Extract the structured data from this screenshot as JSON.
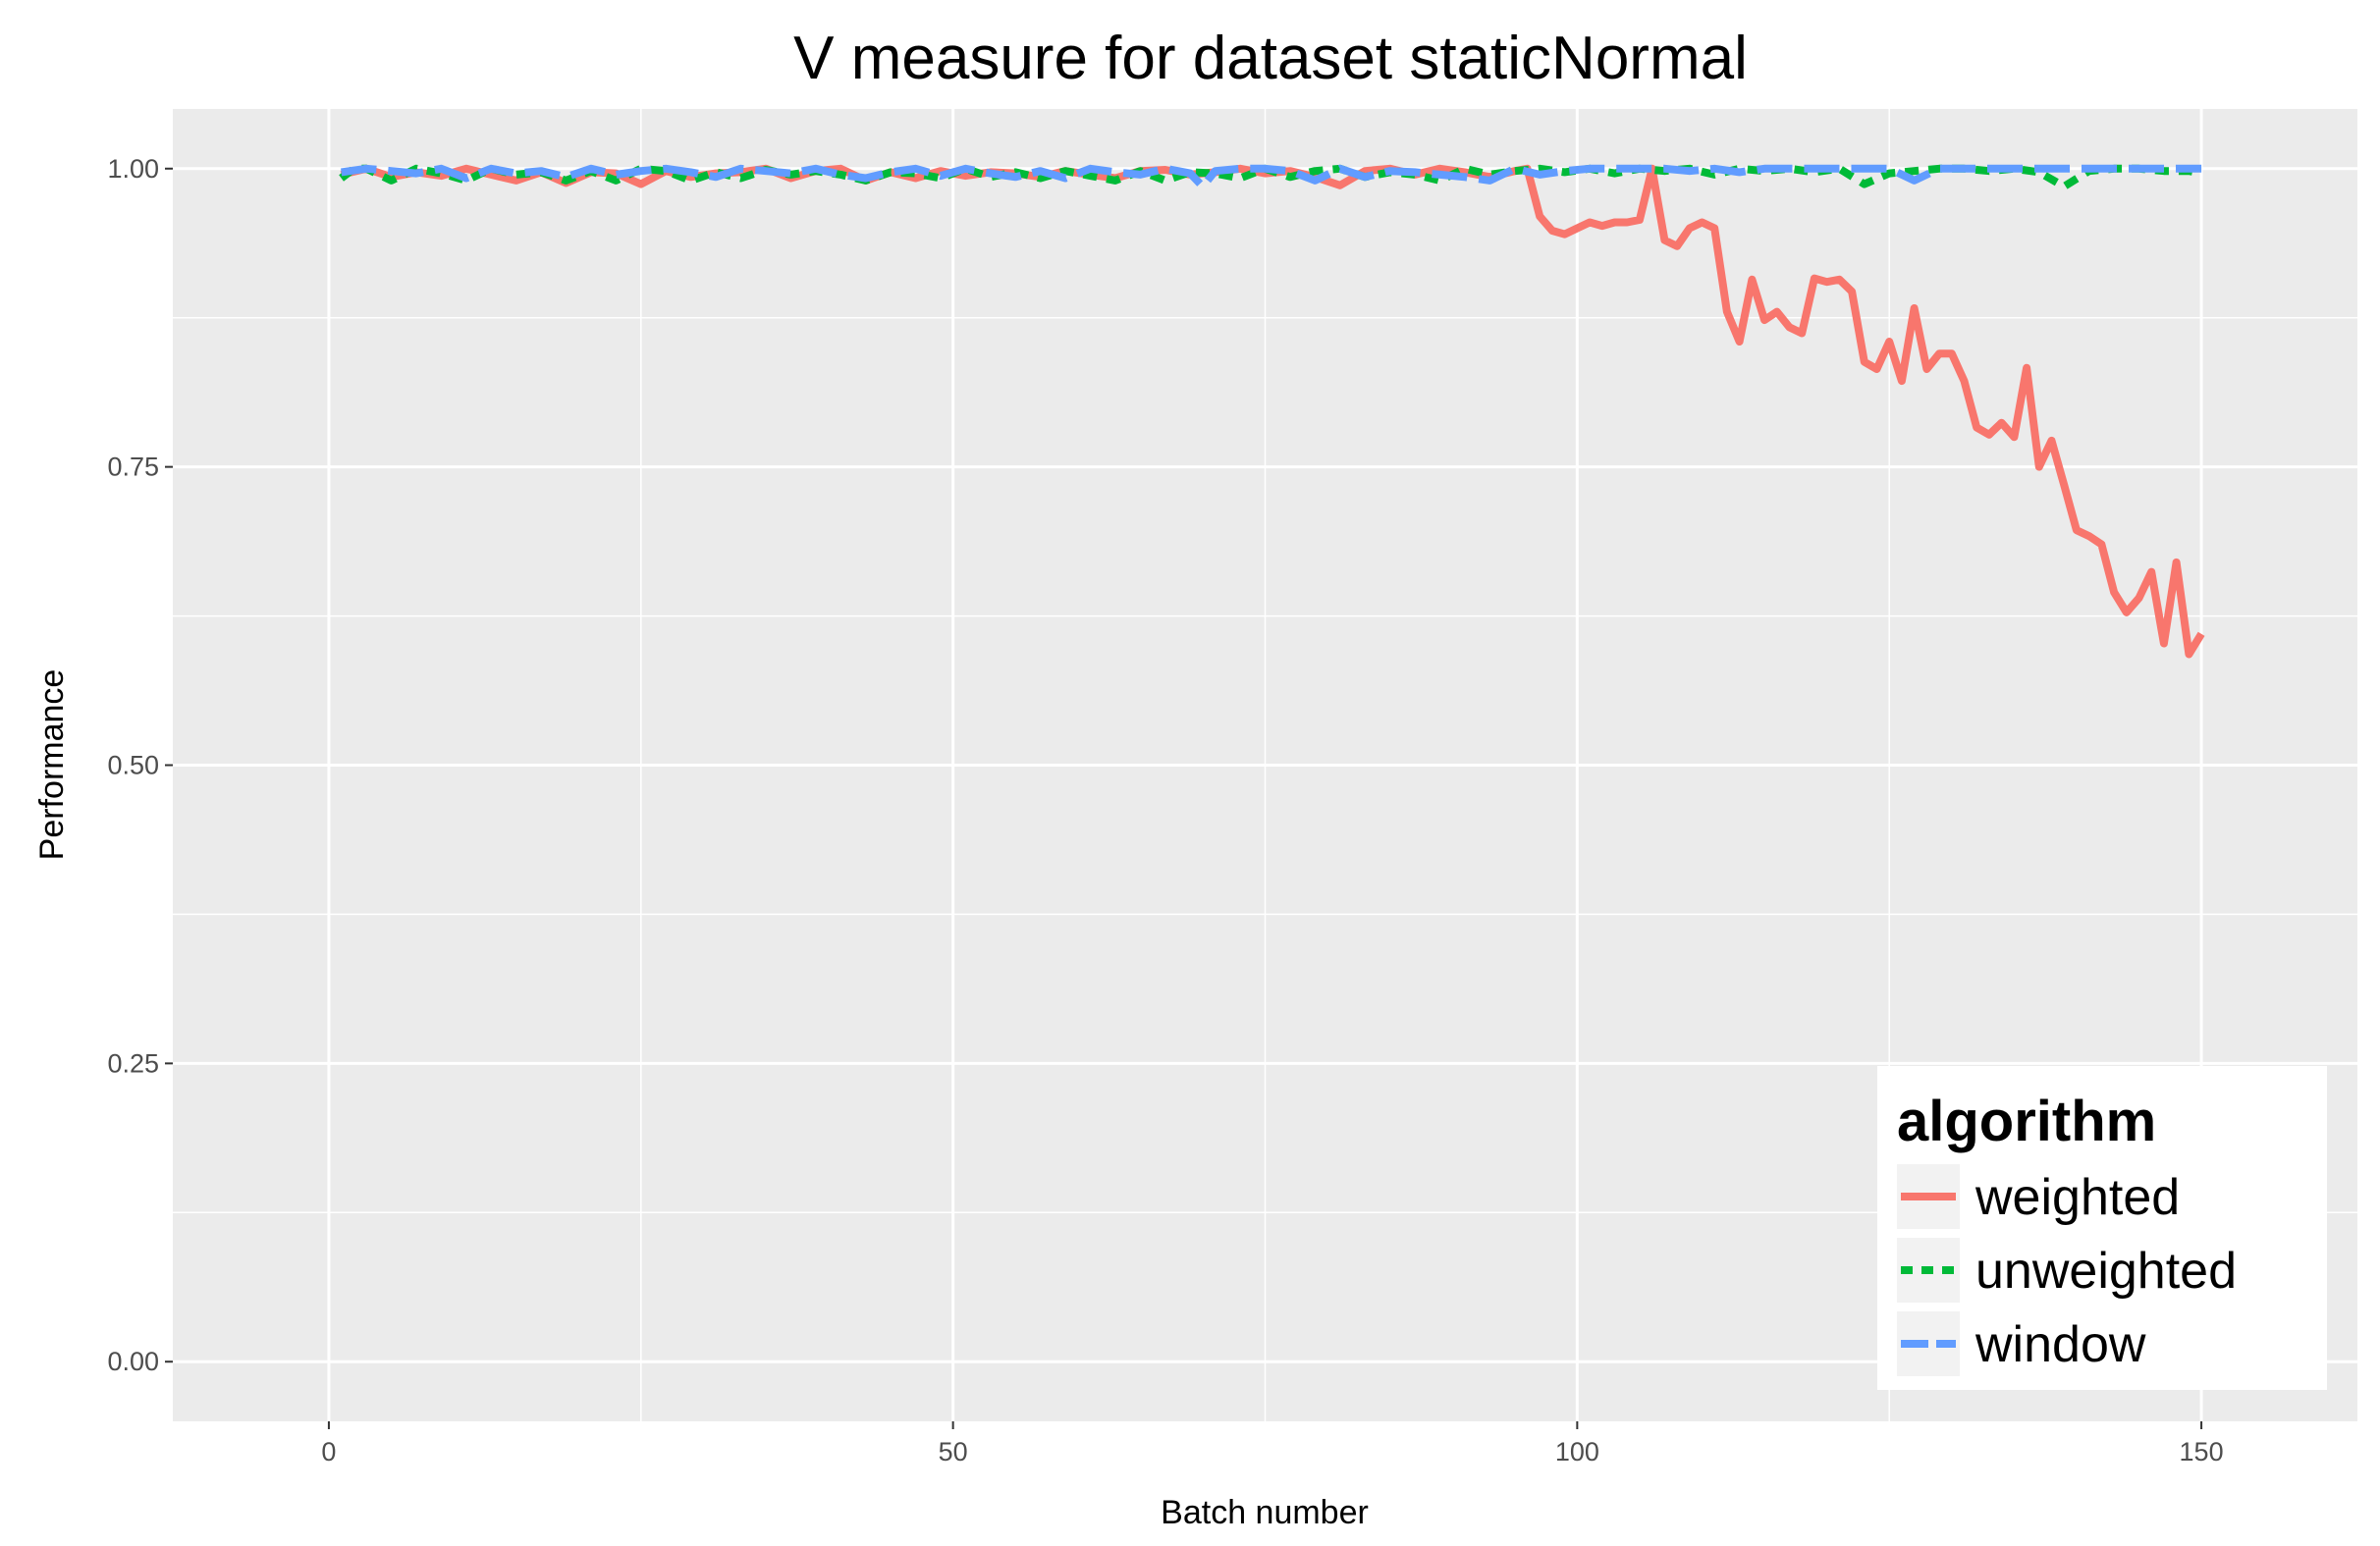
{
  "chart_data": {
    "type": "line",
    "title": "V measure for dataset staticNormal",
    "xlabel": "Batch number",
    "ylabel": "Performance",
    "xlim": [
      -12.5,
      162.5
    ],
    "ylim": [
      -0.05,
      1.05
    ],
    "x_ticks": [
      0,
      50,
      100,
      150
    ],
    "x_tick_labels": [
      "0",
      "50",
      "100",
      "150"
    ],
    "y_ticks": [
      0,
      0.25,
      0.5,
      0.75,
      1.0
    ],
    "y_tick_labels": [
      "0.00",
      "0.25",
      "0.50",
      "0.75",
      "1.00"
    ],
    "grid": true,
    "legend": {
      "title": "algorithm",
      "position": "bottom-right"
    },
    "series": [
      {
        "name": "weighted",
        "color": "#F8766D",
        "dash": "solid",
        "x": [
          1,
          3,
          5,
          7,
          9,
          11,
          13,
          15,
          17,
          19,
          21,
          23,
          25,
          27,
          29,
          31,
          33,
          35,
          37,
          39,
          41,
          43,
          45,
          47,
          49,
          51,
          53,
          55,
          57,
          59,
          61,
          63,
          65,
          67,
          69,
          71,
          73,
          75,
          77,
          79,
          81,
          83,
          85,
          87,
          89,
          91,
          93,
          95,
          96,
          97,
          98,
          99,
          100,
          101,
          102,
          103,
          104,
          105,
          106,
          107,
          108,
          109,
          110,
          111,
          112,
          113,
          114,
          115,
          116,
          117,
          118,
          119,
          120,
          121,
          122,
          123,
          124,
          125,
          126,
          127,
          128,
          129,
          130,
          131,
          132,
          133,
          134,
          135,
          136,
          137,
          138,
          139,
          140,
          141,
          142,
          143,
          144,
          145,
          146,
          147,
          148,
          149,
          150
        ],
        "values": [
          0.995,
          1.0,
          0.993,
          0.997,
          0.994,
          1.0,
          0.995,
          0.99,
          0.997,
          0.988,
          0.997,
          0.996,
          0.987,
          0.998,
          0.993,
          0.996,
          0.997,
          1.0,
          0.992,
          0.998,
          1.0,
          0.99,
          0.997,
          0.992,
          0.998,
          0.994,
          0.997,
          0.996,
          0.993,
          0.998,
          0.995,
          0.992,
          0.998,
          0.999,
          0.995,
          0.997,
          1.0,
          0.996,
          0.998,
          0.993,
          0.986,
          0.998,
          1.0,
          0.995,
          1.0,
          0.997,
          0.993,
          0.998,
          1.0,
          0.96,
          0.948,
          0.945,
          0.95,
          0.955,
          0.952,
          0.955,
          0.955,
          0.957,
          1.0,
          0.94,
          0.935,
          0.95,
          0.955,
          0.95,
          0.88,
          0.855,
          0.907,
          0.873,
          0.88,
          0.867,
          0.862,
          0.908,
          0.905,
          0.907,
          0.897,
          0.838,
          0.832,
          0.855,
          0.822,
          0.883,
          0.832,
          0.845,
          0.845,
          0.822,
          0.783,
          0.777,
          0.787,
          0.775,
          0.833,
          0.75,
          0.772,
          0.735,
          0.697,
          0.692,
          0.685,
          0.645,
          0.628,
          0.64,
          0.662,
          0.602,
          0.67,
          0.593,
          0.61
        ]
      },
      {
        "name": "unweighted",
        "color": "#00BA38",
        "dash": "short",
        "x": [
          1,
          2,
          3,
          5,
          7,
          9,
          11,
          13,
          15,
          17,
          19,
          21,
          23,
          25,
          27,
          29,
          31,
          33,
          35,
          37,
          39,
          41,
          43,
          45,
          47,
          49,
          51,
          53,
          55,
          57,
          59,
          61,
          63,
          65,
          67,
          69,
          71,
          73,
          75,
          77,
          79,
          81,
          83,
          85,
          87,
          89,
          91,
          93,
          95,
          97,
          99,
          101,
          103,
          105,
          107,
          109,
          111,
          113,
          115,
          117,
          119,
          121,
          123,
          125,
          127,
          129,
          131,
          133,
          135,
          137,
          139,
          141,
          143,
          145,
          147,
          149,
          150
        ],
        "values": [
          0.992,
          1.0,
          1.0,
          0.99,
          1.0,
          0.996,
          0.99,
          1.0,
          0.995,
          0.997,
          0.99,
          0.998,
          0.99,
          1.0,
          0.998,
          0.99,
          0.997,
          0.992,
          0.999,
          0.995,
          0.998,
          0.995,
          0.99,
          0.997,
          0.996,
          0.992,
          1.0,
          0.993,
          0.997,
          0.992,
          0.998,
          0.994,
          0.99,
          0.998,
          0.99,
          0.997,
          0.996,
          0.992,
          1.0,
          0.993,
          0.998,
          1.0,
          0.993,
          0.997,
          0.995,
          0.99,
          1.0,
          0.995,
          0.998,
          1.0,
          0.997,
          1.0,
          0.996,
          1.0,
          0.998,
          1.0,
          0.995,
          1.0,
          0.998,
          1.0,
          0.997,
          1.0,
          0.987,
          0.996,
          0.998,
          1.0,
          1.0,
          0.998,
          1.0,
          0.997,
          0.985,
          0.998,
          1.0,
          1.0,
          0.998,
          0.998,
          0.996
        ]
      },
      {
        "name": "window",
        "color": "#619CFF",
        "dash": "long",
        "x": [
          1,
          3,
          5,
          7,
          9,
          11,
          13,
          15,
          17,
          19,
          21,
          23,
          25,
          27,
          29,
          31,
          33,
          35,
          37,
          39,
          41,
          43,
          45,
          47,
          49,
          51,
          53,
          55,
          57,
          59,
          61,
          63,
          65,
          67,
          69,
          70,
          71,
          73,
          75,
          77,
          79,
          81,
          83,
          85,
          87,
          89,
          91,
          93,
          95,
          97,
          99,
          101,
          103,
          105,
          107,
          109,
          111,
          113,
          115,
          117,
          119,
          121,
          123,
          125,
          127,
          129,
          131,
          133,
          135,
          137,
          139,
          141,
          143,
          145,
          147,
          149,
          150
        ],
        "values": [
          0.997,
          1.0,
          0.998,
          0.996,
          1.0,
          0.992,
          1.0,
          0.996,
          0.998,
          0.993,
          1.0,
          0.995,
          0.998,
          1.0,
          0.997,
          0.993,
          1.0,
          0.998,
          0.996,
          1.0,
          0.995,
          0.992,
          0.997,
          1.0,
          0.994,
          1.0,
          0.996,
          0.993,
          0.998,
          0.992,
          1.0,
          0.997,
          0.995,
          1.0,
          0.996,
          0.985,
          0.998,
          1.0,
          1.0,
          0.998,
          0.99,
          1.0,
          0.993,
          0.998,
          0.997,
          0.995,
          0.993,
          0.99,
          1.0,
          0.995,
          0.998,
          1.0,
          1.0,
          1.0,
          1.0,
          0.998,
          1.0,
          0.997,
          1.0,
          1.0,
          1.0,
          1.0,
          1.0,
          1.0,
          0.99,
          1.0,
          1.0,
          1.0,
          1.0,
          1.0,
          1.0,
          1.0,
          1.0,
          1.0,
          1.0,
          1.0,
          1.0
        ]
      }
    ]
  }
}
